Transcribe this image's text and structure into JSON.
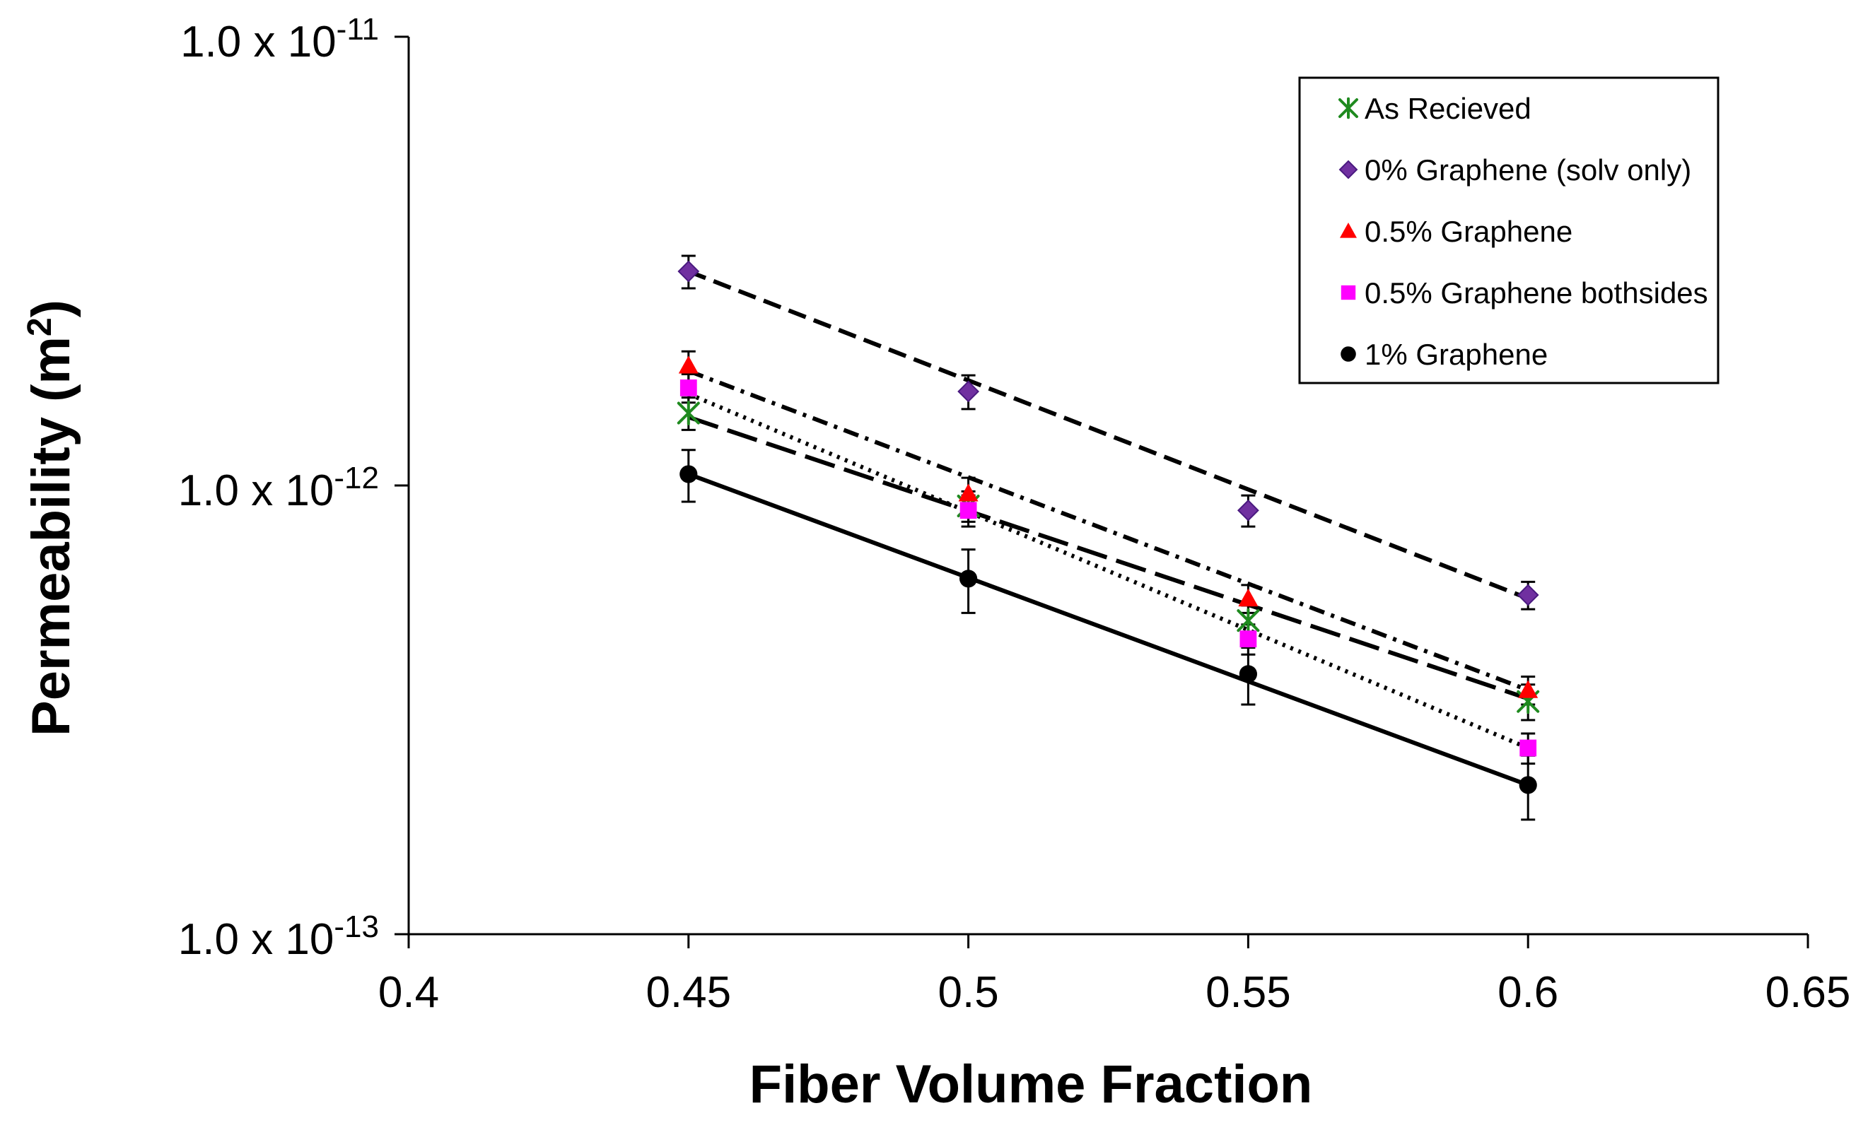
{
  "chart_data": {
    "type": "scatter",
    "title": "",
    "xlabel": "Fiber Volume Fraction",
    "ylabel": {
      "prefix": "Permeability (m",
      "sup": "2",
      "suffix": ")"
    },
    "xlim": [
      0.4,
      0.65
    ],
    "ylim": [
      1e-13,
      1e-11
    ],
    "yscale": "log",
    "grid": false,
    "legend_position": "top-right",
    "x_ticks": [
      {
        "value": 0.4,
        "label": "0.4"
      },
      {
        "value": 0.45,
        "label": "0.45"
      },
      {
        "value": 0.5,
        "label": "0.5"
      },
      {
        "value": 0.55,
        "label": "0.55"
      },
      {
        "value": 0.6,
        "label": "0.6"
      },
      {
        "value": 0.65,
        "label": "0.65"
      }
    ],
    "y_ticks": [
      {
        "value": 1e-11,
        "base": "1.0 x 10",
        "exp": "-11"
      },
      {
        "value": 1e-12,
        "base": "1.0 x 10",
        "exp": "-12"
      },
      {
        "value": 1e-13,
        "base": "1.0 x 10",
        "exp": "-13"
      }
    ],
    "series": [
      {
        "name": "As Recieved",
        "color": "#1f8a1f",
        "marker": "asterisk",
        "line_style": "long-dash",
        "x": [
          0.45,
          0.5,
          0.55,
          0.6
        ],
        "y": [
          1.45e-12,
          9e-13,
          5e-13,
          3.3e-13
        ],
        "yerr": [
          1.2e-13,
          7e-14,
          4e-14,
          3e-14
        ],
        "trend": [
          1.42e-12,
          3.35e-13
        ]
      },
      {
        "name": "0% Graphene (solv only)",
        "color": "#7030a0",
        "marker": "diamond",
        "line_style": "dash",
        "x": [
          0.45,
          0.5,
          0.55,
          0.6
        ],
        "y": [
          3e-12,
          1.62e-12,
          8.8e-13,
          5.7e-13
        ],
        "yerr": [
          2.5e-13,
          1.4e-13,
          7e-14,
          4e-14
        ],
        "trend": [
          3e-12,
          5.6e-13
        ]
      },
      {
        "name": "0.5% Graphene",
        "color": "#ff0000",
        "marker": "triangle",
        "line_style": "dash-dot",
        "x": [
          0.45,
          0.5,
          0.55,
          0.6
        ],
        "y": [
          1.85e-12,
          9.6e-13,
          5.6e-13,
          3.5e-13
        ],
        "yerr": [
          1.4e-13,
          8e-14,
          4e-14,
          2.5e-14
        ],
        "trend": [
          1.8e-12,
          3.5e-13
        ]
      },
      {
        "name": "0.5% Graphene bothsides",
        "color": "#ff00ff",
        "marker": "square",
        "line_style": "dot",
        "x": [
          0.45,
          0.5,
          0.55,
          0.6
        ],
        "y": [
          1.65e-12,
          8.8e-13,
          4.55e-13,
          2.6e-13
        ],
        "yerr": [
          1.2e-13,
          7e-14,
          3.5e-14,
          2e-14
        ],
        "trend": [
          1.6e-12,
          2.6e-13
        ]
      },
      {
        "name": "1% Graphene",
        "color": "#000000",
        "marker": "circle",
        "line_style": "solid",
        "x": [
          0.45,
          0.5,
          0.55,
          0.6
        ],
        "y": [
          1.06e-12,
          6.2e-13,
          3.8e-13,
          2.15e-13
        ],
        "yerr": [
          1.4e-13,
          1e-13,
          5.5e-14,
          3.5e-14
        ],
        "trend": [
          1.06e-12,
          2.15e-13
        ]
      }
    ]
  }
}
